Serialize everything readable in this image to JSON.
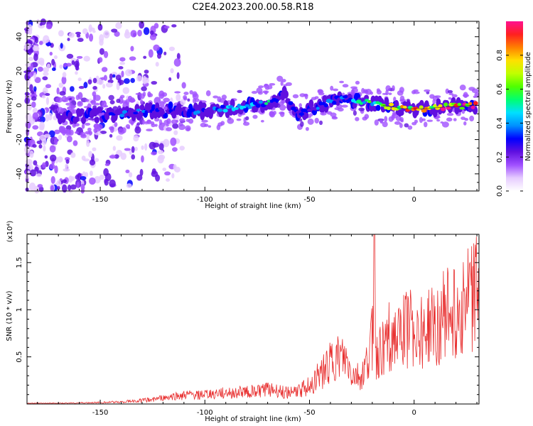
{
  "figure_title": "C2E4.2023.200.00.58.R18",
  "chart_data": [
    {
      "type": "heatmap",
      "title": "C2E4.2023.200.00.58.R18",
      "xlabel": "Height of straight line (km)",
      "ylabel": "Frequency (Hz)",
      "xlim": [
        -185,
        31
      ],
      "ylim": [
        -50,
        49
      ],
      "x_ticks": [
        -150,
        -100,
        -50,
        0
      ],
      "y_ticks": [
        -40,
        -20,
        0,
        20,
        40
      ],
      "colorbar": {
        "label": "Normalized spectral amplitude",
        "range": [
          0.0,
          1.0
        ],
        "ticks": [
          0.0,
          0.2,
          0.4,
          0.6,
          0.8
        ],
        "colors": [
          "#ffffff",
          "#e6ccff",
          "#a050ff",
          "#6010e0",
          "#0000ff",
          "#0090ff",
          "#00e0ff",
          "#00ff70",
          "#50ff00",
          "#c0ff00",
          "#ffe000",
          "#ff8000",
          "#ff2020",
          "#ff1090"
        ]
      },
      "ridge": [
        {
          "x": -150,
          "y": -6,
          "amp": 0.25
        },
        {
          "x": -140,
          "y": -5,
          "amp": 0.35
        },
        {
          "x": -130,
          "y": -4,
          "amp": 0.35
        },
        {
          "x": -120,
          "y": -3,
          "amp": 0.3
        },
        {
          "x": -110,
          "y": -3,
          "amp": 0.3
        },
        {
          "x": -100,
          "y": -3,
          "amp": 0.35
        },
        {
          "x": -90,
          "y": -2,
          "amp": 0.4
        },
        {
          "x": -80,
          "y": 0,
          "amp": 0.45
        },
        {
          "x": -70,
          "y": 1,
          "amp": 0.55
        },
        {
          "x": -62,
          "y": 6,
          "amp": 0.3
        },
        {
          "x": -55,
          "y": -5,
          "amp": 0.35
        },
        {
          "x": -45,
          "y": 0,
          "amp": 0.35
        },
        {
          "x": -35,
          "y": 4,
          "amp": 0.35
        },
        {
          "x": -25,
          "y": 2,
          "amp": 0.55
        },
        {
          "x": -15,
          "y": 0,
          "amp": 0.7
        },
        {
          "x": -5,
          "y": -2,
          "amp": 0.85
        },
        {
          "x": 5,
          "y": -2,
          "amp": 0.85
        },
        {
          "x": 15,
          "y": -1,
          "amp": 0.9
        },
        {
          "x": 28,
          "y": 0,
          "amp": 1.0
        }
      ]
    },
    {
      "type": "line",
      "xlabel": "Height of straight line (km)",
      "ylabel": "SNR (10 * v/v)",
      "y_multiplier": "(x10⁴)",
      "xlim": [
        -185,
        31
      ],
      "ylim": [
        0,
        1.8
      ],
      "x_ticks": [
        -150,
        -100,
        -50,
        0
      ],
      "y_ticks": [
        0.5,
        1.0,
        1.5
      ],
      "series": [
        {
          "color": "#e83030",
          "x": [
            -185,
            -170,
            -160,
            -150,
            -140,
            -130,
            -120,
            -110,
            -105,
            -100,
            -95,
            -90,
            -85,
            -80,
            -75,
            -70,
            -65,
            -60,
            -55,
            -50,
            -48,
            -45,
            -40,
            -38,
            -35,
            -32,
            -30,
            -25,
            -22,
            -20,
            -19,
            -18,
            -15,
            -12,
            -10,
            -8,
            -5,
            0,
            5,
            10,
            15,
            20,
            25,
            31
          ],
          "y": [
            0.01,
            0.01,
            0.015,
            0.02,
            0.03,
            0.05,
            0.08,
            0.12,
            0.12,
            0.13,
            0.14,
            0.15,
            0.16,
            0.17,
            0.18,
            0.2,
            0.17,
            0.16,
            0.18,
            0.25,
            0.3,
            0.4,
            0.55,
            0.6,
            0.6,
            0.55,
            0.4,
            0.35,
            0.6,
            0.9,
            1.75,
            0.6,
            0.75,
            0.9,
            0.95,
            0.8,
            1.0,
            1.05,
            0.95,
            1.1,
            1.2,
            1.3,
            1.4,
            1.5
          ]
        }
      ]
    }
  ]
}
